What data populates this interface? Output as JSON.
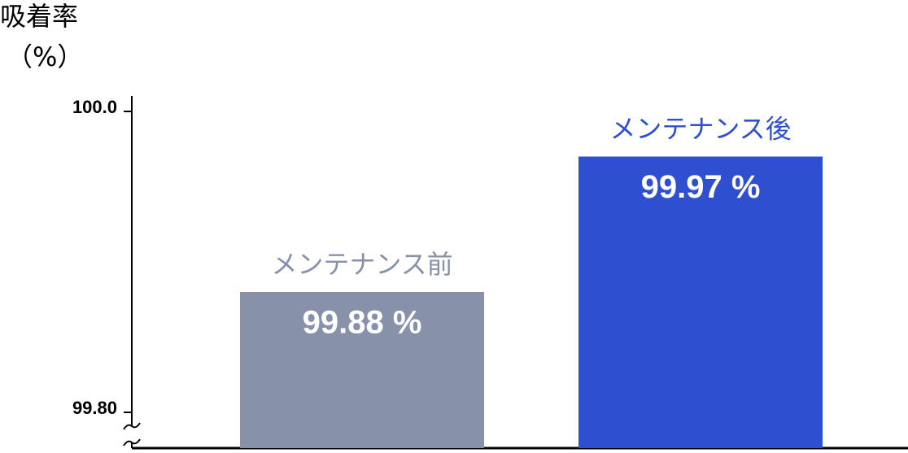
{
  "chart_data": {
    "type": "bar",
    "ylabel": [
      "吸着率",
      "（%）"
    ],
    "categories": [
      "メンテナンス前",
      "メンテナンス後"
    ],
    "values": [
      99.88,
      99.97
    ],
    "value_labels": [
      "99.88 %",
      "99.97 %"
    ],
    "colors": [
      "#8891aa",
      "#2f4fd1"
    ],
    "ylim": [
      99.8,
      100.0
    ],
    "yticks": [
      {
        "value": 99.8,
        "label": "99.80"
      },
      {
        "value": 100.0,
        "label": "100.0"
      }
    ],
    "axis_break": true
  }
}
